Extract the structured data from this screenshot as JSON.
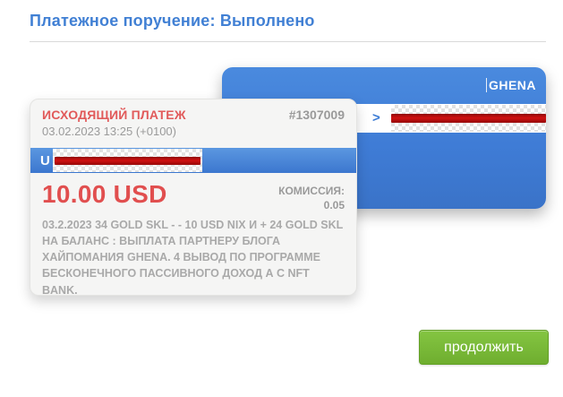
{
  "page": {
    "title": "Платежное поручение: Выполнено"
  },
  "bank_card": {
    "brand": "GHENA",
    "stripe_arrow": ">"
  },
  "receipt": {
    "type_label": "ИСХОДЯЩИЙ ПЛАТЕЖ",
    "id": "#1307009",
    "datetime": "03.02.2023 13:25 (+0100)",
    "account_prefix": "U",
    "amount": "10.00 USD",
    "commission_label": "КОМИССИЯ:",
    "commission_value": "0.05",
    "description": "03.2.2023 34 GOLD SKL - - 10 USD NIX И + 24 GOLD SKL НА БАЛАНС : ВЫПЛАТА ПАРТНЕРУ БЛОГА ХАЙПОМАНИЯ GHENA. 4 ВЫВОД ПО ПРОГРАММЕ БЕСКОНЕЧНОГО ПАССИВНОГО ДОХОД А С NFT BANK."
  },
  "actions": {
    "continue_label": "продолжить"
  },
  "colors": {
    "title_blue": "#4180d4",
    "card_blue": "#3f7cd6",
    "accent_red": "#e14f4f",
    "muted_gray": "#9a9a9a",
    "redaction_red": "#c00a0a",
    "button_green": "#76b834"
  }
}
